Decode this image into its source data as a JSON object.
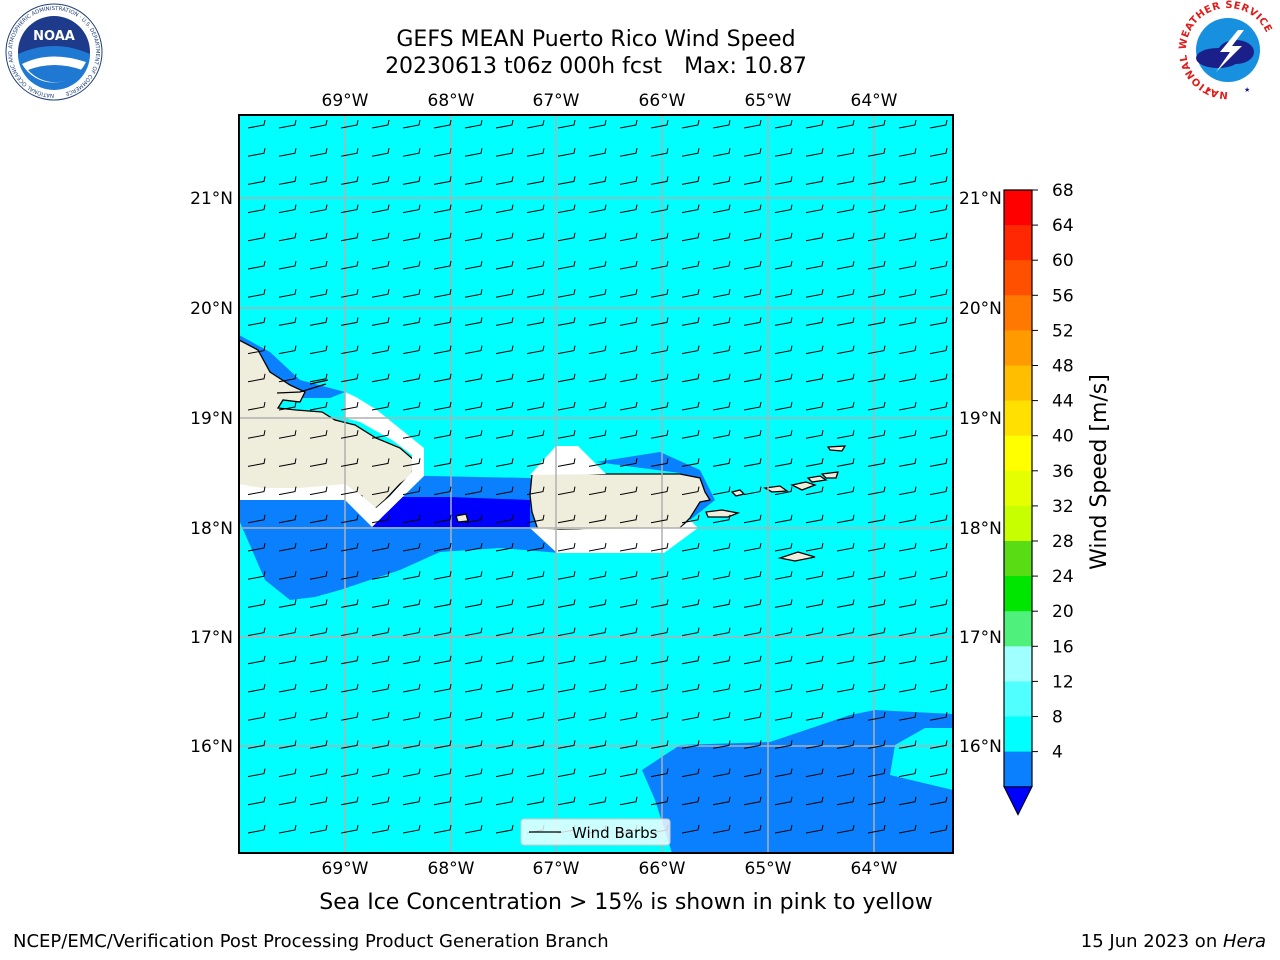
{
  "title": {
    "line1": "GEFS MEAN Puerto Rico Wind Speed",
    "line2_run": "20230613 t06z 000h fcst",
    "line2_max": "Max: 10.87"
  },
  "map": {
    "region": "Puerto Rico",
    "lon_ticks": [
      "69°W",
      "68°W",
      "67°W",
      "66°W",
      "65°W",
      "64°W"
    ],
    "lat_ticks": [
      "21°N",
      "20°N",
      "19°N",
      "18°N",
      "17°N",
      "16°N"
    ],
    "legend_label": "Wind Barbs",
    "wind_direction": "east",
    "colors": {
      "fill_4_8": "#0a80ff",
      "fill_8_12": "#00ffff",
      "fill_below_4": "#0000ff",
      "land": "#efeddc",
      "grid": "#b0b0b0"
    }
  },
  "colorbar": {
    "label": "Wind Speed [m/s]",
    "ticks": [
      "68",
      "64",
      "60",
      "56",
      "52",
      "48",
      "44",
      "40",
      "36",
      "32",
      "28",
      "24",
      "20",
      "16",
      "12",
      "8",
      "4"
    ],
    "colors_top_to_bottom": [
      "#ff0000",
      "#ff2800",
      "#ff5000",
      "#ff7800",
      "#ff9a00",
      "#ffbe00",
      "#ffe000",
      "#ffff00",
      "#e6ff00",
      "#c8ff00",
      "#5adc14",
      "#00e600",
      "#50f07c",
      "#a0ffff",
      "#50ffff",
      "#00ffff",
      "#0a80ff"
    ],
    "under_color": "#0000ff"
  },
  "caption": "Sea Ice Concentration > 15% is shown in pink to yellow",
  "footer": {
    "left": "NCEP/EMC/Verification Post Processing Product Generation Branch",
    "right_date": "15 Jun 2023 on ",
    "right_host": "Hera"
  },
  "logos": {
    "left": {
      "icon": "noaa-logo",
      "text": "NOAA",
      "ring_text": "NATIONAL OCEANIC AND ATMOSPHERIC ADMINISTRATION · U.S. DEPARTMENT OF COMMERCE"
    },
    "right": {
      "icon": "nws-logo",
      "ring_text": "NATIONAL WEATHER SERVICE"
    }
  }
}
